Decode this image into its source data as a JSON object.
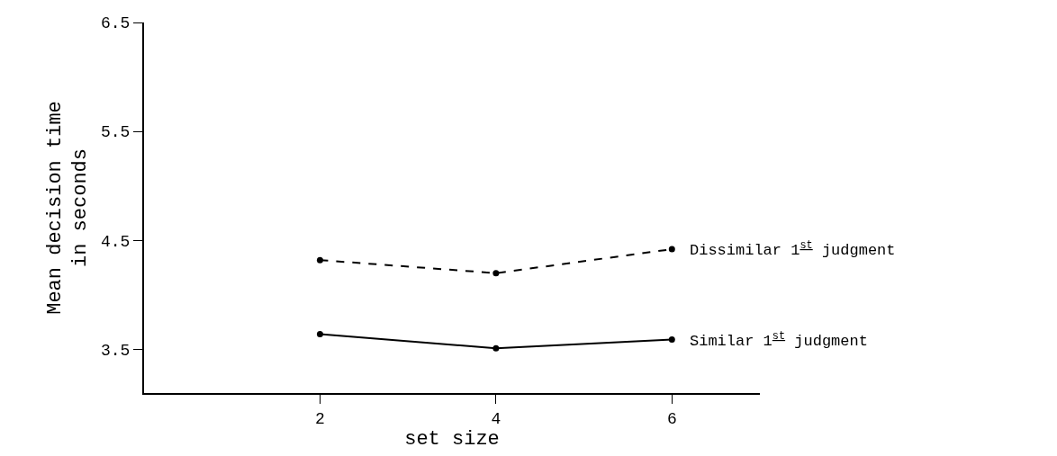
{
  "chart_data": {
    "type": "line",
    "xlabel": "set size",
    "ylabel": "Mean decision time\nin seconds",
    "x": [
      2,
      4,
      6
    ],
    "series": [
      {
        "name": "Dissimilar 1$^{st}$ judgment",
        "color": "#000000",
        "line_style": "dashed",
        "values": [
          4.32,
          4.2,
          4.42
        ]
      },
      {
        "name": "Similar 1$^{st}$ judgment",
        "color": "#000000",
        "line_style": "solid",
        "values": [
          3.64,
          3.51,
          3.59
        ]
      }
    ],
    "xlim": [
      0,
      7
    ],
    "xticks": [
      2,
      4,
      6
    ],
    "ylim": [
      3.1,
      6.5
    ],
    "yticks": [
      3.5,
      4.5,
      5.5,
      6.5
    ],
    "legend": false,
    "marker": "circle"
  }
}
